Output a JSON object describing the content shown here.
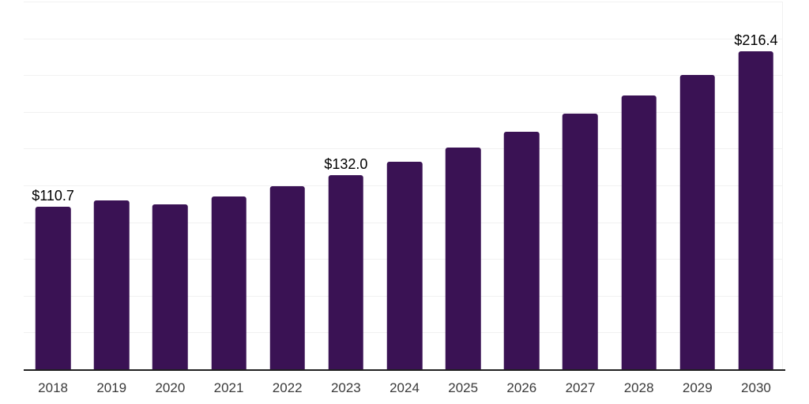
{
  "chart_data": {
    "type": "bar",
    "title": "",
    "xlabel": "",
    "ylabel": "",
    "categories": [
      "2018",
      "2019",
      "2020",
      "2021",
      "2022",
      "2023",
      "2024",
      "2025",
      "2026",
      "2027",
      "2028",
      "2029",
      "2030"
    ],
    "values": [
      110.7,
      114.9,
      112.2,
      117.5,
      124.6,
      132.0,
      141.0,
      150.8,
      161.5,
      173.8,
      186.1,
      200.3,
      216.4
    ],
    "data_labels": {
      "2018": "$110.7",
      "2023": "$132.0",
      "2030": "$216.4"
    },
    "value_prefix": "$",
    "ylim": [
      0,
      250
    ],
    "grid_interval": 25,
    "gridline_count": 10,
    "grid": "horizontal only, very light gray",
    "legend": "none",
    "y_axis_labels": "none"
  },
  "colors": {
    "bar": "#3a1254",
    "gridline": "#f1f1f1",
    "axis_line": "#1f1f1f",
    "tick_label": "#3a3a3a",
    "data_label": "#000000",
    "background": "#ffffff"
  }
}
